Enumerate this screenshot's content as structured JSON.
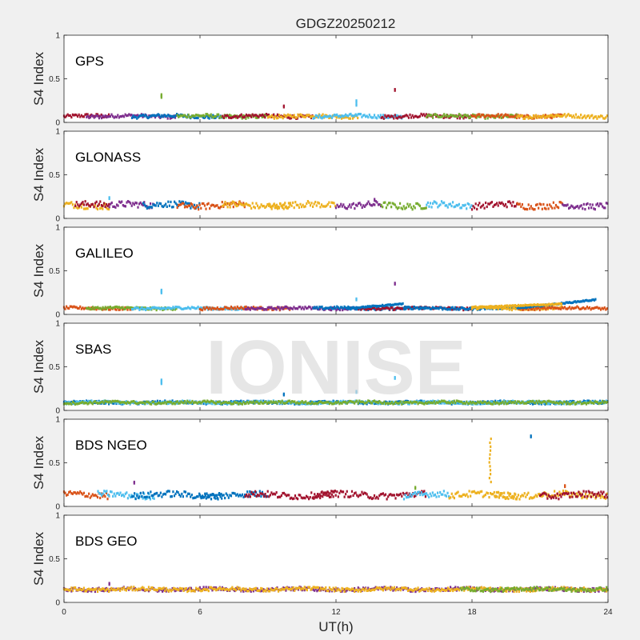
{
  "chart_data": {
    "type": "scatter",
    "title": "GDGZ20250212",
    "xlabel": "UT(h)",
    "xlim": [
      0,
      24
    ],
    "xticks": [
      0,
      6,
      12,
      18,
      24
    ],
    "watermark": "IONISE",
    "colors": [
      "#0072bd",
      "#d95319",
      "#edb120",
      "#7e2f8e",
      "#77ac30",
      "#4dbeee",
      "#a2142f"
    ],
    "panels": [
      {
        "name": "GPS",
        "ylabel": "S4 Index",
        "ylim": [
          0,
          1
        ],
        "yticks": [
          0,
          0.5,
          1
        ],
        "base": 0.07,
        "noise": 0.02,
        "segments": [
          [
            0,
            2,
            6
          ],
          [
            1,
            5,
            3
          ],
          [
            3,
            7,
            0
          ],
          [
            5,
            9,
            4
          ],
          [
            7,
            11,
            6
          ],
          [
            9,
            13,
            2
          ],
          [
            11,
            15,
            5
          ],
          [
            14,
            18,
            6
          ],
          [
            16,
            20,
            4
          ],
          [
            18,
            22,
            1
          ],
          [
            20,
            24,
            2
          ]
        ],
        "spikes": [
          [
            4.3,
            0.32,
            4
          ],
          [
            4.3,
            0.3,
            4
          ],
          [
            12.9,
            0.25,
            5
          ],
          [
            12.9,
            0.21,
            5
          ],
          [
            14.6,
            0.38,
            6
          ],
          [
            9.7,
            0.19,
            6
          ]
        ]
      },
      {
        "name": "GLONASS",
        "ylabel": "S4 Index",
        "ylim": [
          0,
          1
        ],
        "yticks": [
          0,
          0.5,
          1
        ],
        "base": 0.15,
        "noise": 0.035,
        "segments": [
          [
            0,
            2,
            2
          ],
          [
            0.5,
            2,
            6
          ],
          [
            2,
            4,
            3
          ],
          [
            3.5,
            6,
            0
          ],
          [
            5,
            8,
            1
          ],
          [
            7,
            10,
            2
          ],
          [
            9,
            12,
            2
          ],
          [
            12,
            14,
            3
          ],
          [
            14,
            16,
            4
          ],
          [
            16,
            18,
            5
          ],
          [
            18,
            20,
            6
          ],
          [
            20,
            22,
            1
          ],
          [
            22,
            24,
            3
          ]
        ],
        "spikes": [
          [
            2.0,
            0.24,
            5
          ],
          [
            13.7,
            0.22,
            3
          ]
        ]
      },
      {
        "name": "GALILEO",
        "ylabel": "S4 Index",
        "ylim": [
          0,
          1
        ],
        "yticks": [
          0,
          0.5,
          1
        ],
        "base": 0.07,
        "noise": 0.015,
        "segments": [
          [
            0,
            3,
            1
          ],
          [
            1,
            5,
            4
          ],
          [
            3,
            8,
            5
          ],
          [
            6,
            10,
            1
          ],
          [
            8,
            13,
            3
          ],
          [
            11,
            16,
            0
          ],
          [
            13,
            18,
            6
          ],
          [
            15,
            20,
            0
          ],
          [
            18,
            22,
            2
          ],
          [
            20,
            24,
            1
          ]
        ],
        "spikes": [
          [
            4.3,
            0.28,
            5
          ],
          [
            4.3,
            0.26,
            5
          ],
          [
            12.9,
            0.18,
            5
          ],
          [
            14.6,
            0.36,
            3
          ]
        ],
        "ramps": [
          [
            20,
            23.5,
            0.07,
            0.17,
            0
          ],
          [
            18,
            22,
            0.08,
            0.12,
            2
          ],
          [
            12.5,
            15,
            0.07,
            0.12,
            0
          ]
        ]
      },
      {
        "name": "SBAS",
        "ylabel": "S4 Index",
        "ylim": [
          0,
          1
        ],
        "yticks": [
          0,
          0.5,
          1
        ],
        "base": 0.09,
        "noise": 0.015,
        "segments": [
          [
            0,
            24,
            0
          ],
          [
            0,
            24,
            5
          ],
          [
            0,
            24,
            4
          ]
        ],
        "spikes": [
          [
            4.3,
            0.35,
            5
          ],
          [
            4.3,
            0.32,
            5
          ],
          [
            9.7,
            0.19,
            0
          ],
          [
            14.6,
            0.38,
            5
          ],
          [
            12.9,
            0.22,
            5
          ]
        ]
      },
      {
        "name": "BDS NGEO",
        "ylabel": "S4 Index",
        "ylim": [
          0,
          1
        ],
        "yticks": [
          0,
          0.5,
          1
        ],
        "base": 0.13,
        "noise": 0.035,
        "segments": [
          [
            0,
            2,
            1
          ],
          [
            1.5,
            4,
            5
          ],
          [
            3,
            7,
            0
          ],
          [
            6,
            9,
            0
          ],
          [
            8,
            12,
            6
          ],
          [
            11,
            16,
            6
          ],
          [
            15,
            17,
            5
          ],
          [
            17,
            20,
            2
          ],
          [
            19,
            24,
            2
          ],
          [
            21,
            24,
            6
          ]
        ],
        "spikes": [
          [
            3.1,
            0.28,
            3
          ],
          [
            20.6,
            0.81,
            0
          ],
          [
            15.5,
            0.22,
            4
          ],
          [
            22.1,
            0.24,
            1
          ]
        ],
        "vline": [
          18.8,
          0.28,
          0.78,
          2
        ]
      },
      {
        "name": "BDS GEO",
        "ylabel": "S4 Index",
        "ylim": [
          0,
          1
        ],
        "yticks": [
          0,
          0.5,
          1
        ],
        "base": 0.15,
        "noise": 0.02,
        "segments": [
          [
            0,
            24,
            3
          ],
          [
            0,
            24,
            2
          ],
          [
            17.5,
            24,
            4
          ]
        ],
        "spikes": [
          [
            2.0,
            0.22,
            3
          ]
        ]
      }
    ]
  }
}
